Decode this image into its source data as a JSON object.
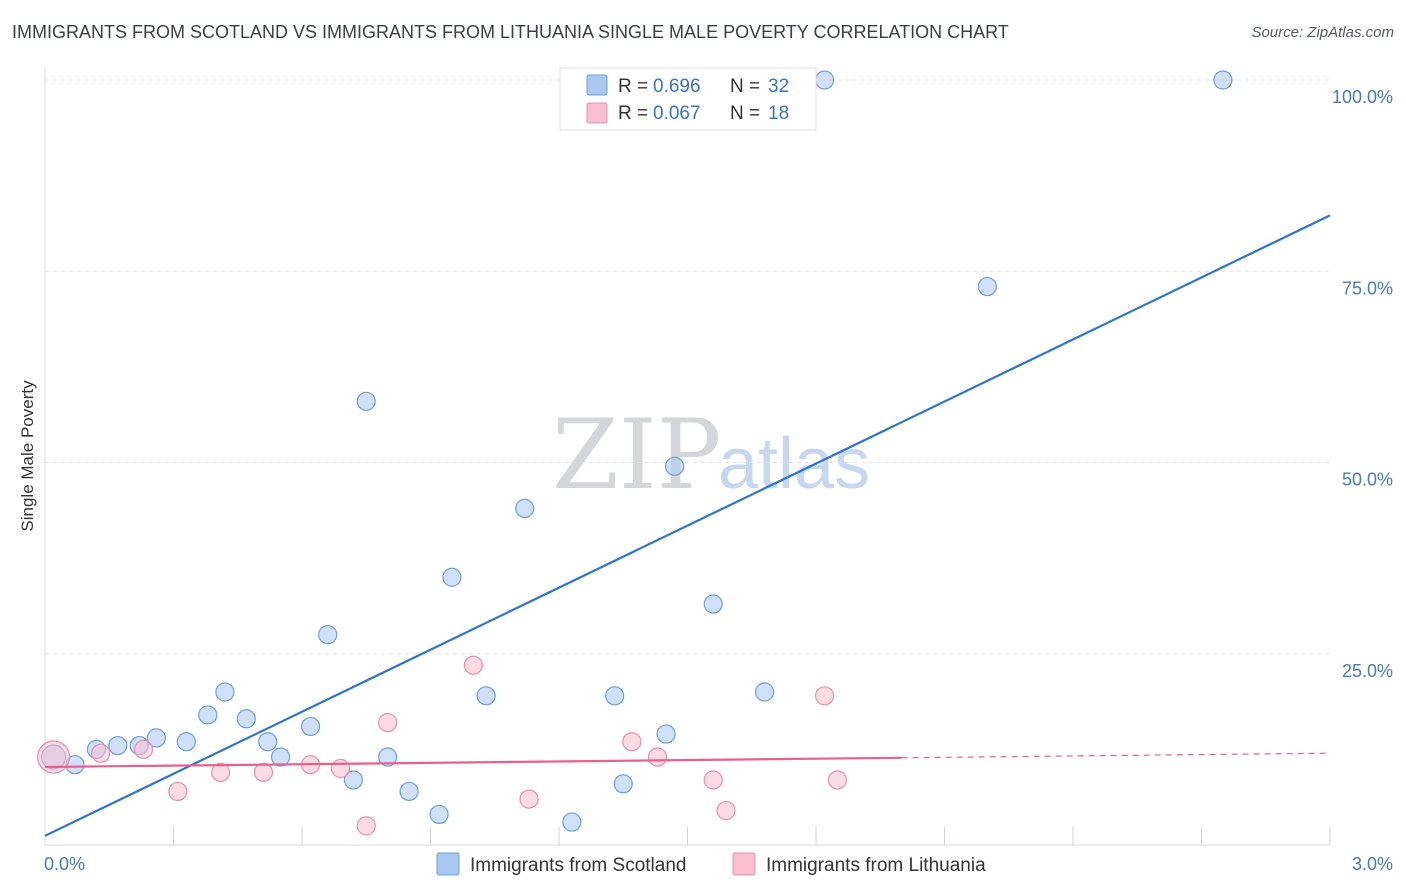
{
  "chart_data": {
    "type": "scatter",
    "title": "IMMIGRANTS FROM SCOTLAND VS IMMIGRANTS FROM LITHUANIA SINGLE MALE POVERTY CORRELATION CHART",
    "source": "Source: ZipAtlas.com",
    "ylabel": "Single Male Poverty",
    "xlabel": "",
    "xlim": [
      0,
      3.0
    ],
    "ylim": [
      0,
      100
    ],
    "x_tick_labels": {
      "min": "0.0%",
      "max": "3.0%"
    },
    "y_tick_labels": [
      {
        "value": 100,
        "label": "100.0%"
      },
      {
        "value": 75,
        "label": "75.0%"
      },
      {
        "value": 50,
        "label": "50.0%"
      },
      {
        "value": 25,
        "label": "25.0%"
      }
    ],
    "watermark": {
      "part1": "ZIP",
      "part2": "atlas"
    },
    "legend": [
      {
        "r_label": "R =",
        "r_value": "0.696",
        "n_label": "N =",
        "n_value": "32"
      },
      {
        "r_label": "R =",
        "r_value": "0.067",
        "n_label": "N =",
        "n_value": "18"
      }
    ],
    "series": [
      {
        "name": "Immigrants from Scotland",
        "color": "#a9c8f0",
        "stroke": "#6f9fdc",
        "line_color": "#2f75d0",
        "trend": {
          "x0": 0.0,
          "y0": 1.2,
          "x1": 3.0,
          "y1": 82.3,
          "dash_from": null
        },
        "points": [
          [
            0.02,
            11.5,
            12
          ],
          [
            0.07,
            10.5,
            9
          ],
          [
            0.12,
            12.5,
            9
          ],
          [
            0.17,
            13.0,
            9
          ],
          [
            0.22,
            13.0,
            9
          ],
          [
            0.26,
            14.0,
            9
          ],
          [
            0.33,
            13.5,
            9
          ],
          [
            0.38,
            17.0,
            9
          ],
          [
            0.42,
            20.0,
            9
          ],
          [
            0.47,
            16.5,
            9
          ],
          [
            0.52,
            13.5,
            9
          ],
          [
            0.55,
            11.5,
            9
          ],
          [
            0.62,
            15.5,
            9
          ],
          [
            0.66,
            27.5,
            9
          ],
          [
            0.72,
            8.5,
            9
          ],
          [
            0.75,
            58.0,
            9
          ],
          [
            0.8,
            11.5,
            9
          ],
          [
            0.85,
            7.0,
            9
          ],
          [
            0.92,
            4.0,
            9
          ],
          [
            0.95,
            35.0,
            9
          ],
          [
            1.03,
            19.5,
            9
          ],
          [
            1.12,
            44.0,
            9
          ],
          [
            1.23,
            3.0,
            9
          ],
          [
            1.33,
            19.5,
            9
          ],
          [
            1.35,
            8.0,
            9
          ],
          [
            1.45,
            14.5,
            9
          ],
          [
            1.47,
            49.5,
            9
          ],
          [
            1.56,
            31.5,
            9
          ],
          [
            1.68,
            20.0,
            9
          ],
          [
            1.82,
            100.0,
            9
          ],
          [
            2.2,
            73.0,
            9
          ],
          [
            2.75,
            100.0,
            9
          ]
        ]
      },
      {
        "name": "Immigrants from Lithuania",
        "color": "#f7bfd0",
        "stroke": "#ec8fab",
        "line_color": "#e8618c",
        "trend": {
          "x0": 0.0,
          "y0": 10.2,
          "x1": 3.0,
          "y1": 12.0,
          "dash_from": 2.0
        },
        "points": [
          [
            0.02,
            11.5,
            16
          ],
          [
            0.13,
            12.0,
            9
          ],
          [
            0.23,
            12.5,
            9
          ],
          [
            0.31,
            7.0,
            9
          ],
          [
            0.41,
            9.5,
            9
          ],
          [
            0.51,
            9.5,
            9
          ],
          [
            0.62,
            10.5,
            9
          ],
          [
            0.69,
            10.0,
            9
          ],
          [
            0.75,
            2.5,
            9
          ],
          [
            0.8,
            16.0,
            9
          ],
          [
            1.0,
            23.5,
            9
          ],
          [
            1.13,
            6.0,
            9
          ],
          [
            1.37,
            13.5,
            9
          ],
          [
            1.43,
            11.5,
            9
          ],
          [
            1.56,
            8.5,
            9
          ],
          [
            1.59,
            4.5,
            9
          ],
          [
            1.82,
            19.5,
            9
          ],
          [
            1.85,
            8.5,
            9
          ]
        ]
      }
    ]
  }
}
